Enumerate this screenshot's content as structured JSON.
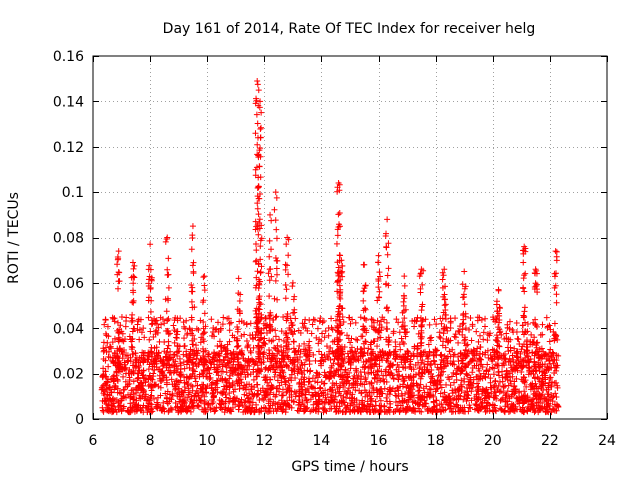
{
  "chart_data": {
    "type": "scatter",
    "title": "Day 161 of 2014, Rate Of TEC Index for receiver helg",
    "xlabel": "GPS time / hours",
    "ylabel": "ROTI / TECUs",
    "xlim": [
      6,
      24
    ],
    "ylim": [
      0,
      0.16
    ],
    "x_ticks": [
      6,
      8,
      10,
      12,
      14,
      16,
      18,
      20,
      22,
      24
    ],
    "y_ticks": [
      0,
      0.02,
      0.04,
      0.06,
      0.08,
      0.1,
      0.12,
      0.14,
      0.16
    ],
    "x_tick_labels": [
      "6",
      "8",
      "10",
      "12",
      "14",
      "16",
      "18",
      "20",
      "22",
      "24"
    ],
    "y_tick_labels": [
      "0",
      "0.02",
      "0.04",
      "0.06",
      "0.08",
      "0.1",
      "0.12",
      "0.14",
      "0.16"
    ],
    "grid": true,
    "marker": "+",
    "color": "#ff0000",
    "series": [
      {
        "name": "ROTI",
        "description_points": "approximate envelope of plotted points (hours, TECU/s)",
        "baseline": {
          "x_start": 6.3,
          "x_end": 22.3,
          "y_min": 0.003,
          "y_max": 0.03
        },
        "peaks": [
          {
            "x": 6.9,
            "y": 0.074
          },
          {
            "x": 7.4,
            "y": 0.069
          },
          {
            "x": 8.0,
            "y": 0.077
          },
          {
            "x": 8.6,
            "y": 0.08
          },
          {
            "x": 9.5,
            "y": 0.085
          },
          {
            "x": 9.9,
            "y": 0.063
          },
          {
            "x": 11.1,
            "y": 0.062
          },
          {
            "x": 11.75,
            "y": 0.149
          },
          {
            "x": 11.85,
            "y": 0.14
          },
          {
            "x": 12.2,
            "y": 0.09
          },
          {
            "x": 12.4,
            "y": 0.1
          },
          {
            "x": 12.8,
            "y": 0.08
          },
          {
            "x": 13.0,
            "y": 0.06
          },
          {
            "x": 14.6,
            "y": 0.104
          },
          {
            "x": 14.7,
            "y": 0.07
          },
          {
            "x": 15.5,
            "y": 0.068
          },
          {
            "x": 16.3,
            "y": 0.088
          },
          {
            "x": 16.0,
            "y": 0.072
          },
          {
            "x": 16.9,
            "y": 0.063
          },
          {
            "x": 17.5,
            "y": 0.066
          },
          {
            "x": 18.3,
            "y": 0.066
          },
          {
            "x": 19.0,
            "y": 0.065
          },
          {
            "x": 20.2,
            "y": 0.057
          },
          {
            "x": 21.1,
            "y": 0.076
          },
          {
            "x": 21.5,
            "y": 0.066
          },
          {
            "x": 22.2,
            "y": 0.074
          }
        ]
      }
    ]
  }
}
